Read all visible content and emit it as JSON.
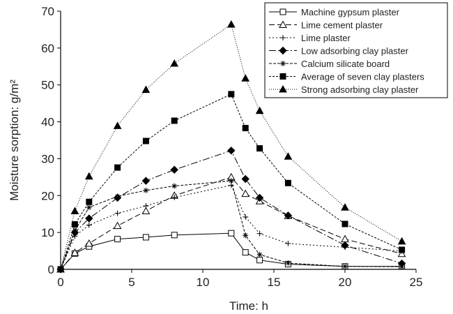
{
  "chart_data": {
    "type": "line",
    "title": "",
    "xlabel": "Time: h",
    "ylabel": "Moisture sorption: g/m²",
    "xlim": [
      0,
      25
    ],
    "ylim": [
      0,
      70
    ],
    "xticks": [
      0,
      5,
      10,
      15,
      20,
      25
    ],
    "yticks": [
      0,
      10,
      20,
      30,
      40,
      50,
      60,
      70
    ],
    "x": [
      0,
      1,
      2,
      4,
      6,
      8,
      12,
      13,
      14,
      16,
      20,
      24
    ],
    "grid": false,
    "legend_position": "top-right",
    "series": [
      {
        "name": "Machine gypsum plaster",
        "marker": "square-open",
        "dash": "",
        "color": "#000000",
        "values": [
          0,
          4.3,
          6.2,
          8.2,
          8.7,
          9.3,
          9.8,
          4.6,
          2.5,
          1.4,
          0.8,
          0.8
        ]
      },
      {
        "name": "Lime cement plaster",
        "marker": "triangle-open",
        "dash": "8,4",
        "color": "#000000",
        "values": [
          0,
          4.5,
          7.0,
          11.8,
          15.8,
          20.0,
          25.0,
          20.5,
          18.5,
          14.5,
          8.2,
          4.2
        ]
      },
      {
        "name": "Lime plaster",
        "marker": "plus",
        "dash": "2,3",
        "color": "#000000",
        "values": [
          0,
          9.0,
          12.0,
          15.2,
          17.2,
          19.5,
          22.8,
          14.2,
          9.7,
          7.0,
          6.0,
          5.0
        ]
      },
      {
        "name": "Low adsorbing clay plaster",
        "marker": "diamond-filled",
        "dash": "10,3,2,3",
        "color": "#000000",
        "values": [
          0,
          10.0,
          13.8,
          19.4,
          24.0,
          27.0,
          32.2,
          24.5,
          19.4,
          14.6,
          6.5,
          1.6
        ]
      },
      {
        "name": "Calcium silicate board",
        "marker": "asterisk",
        "dash": "4,2",
        "color": "#000000",
        "values": [
          0,
          10.5,
          16.8,
          19.8,
          21.4,
          22.6,
          24.0,
          9.2,
          4.0,
          1.7,
          0.8,
          0.7
        ]
      },
      {
        "name": "Average of seven clay plasters",
        "marker": "square-filled",
        "dash": "3,2",
        "color": "#000000",
        "values": [
          0,
          12.2,
          18.3,
          27.6,
          34.8,
          40.3,
          47.5,
          38.3,
          32.8,
          23.4,
          12.3,
          5.3
        ]
      },
      {
        "name": "Strong adsorbing clay plaster",
        "marker": "triangle-filled",
        "dash": "1,2",
        "color": "#000000",
        "values": [
          0,
          15.8,
          25.2,
          38.9,
          48.7,
          55.8,
          66.4,
          51.8,
          43.0,
          30.6,
          16.8,
          7.6
        ]
      }
    ]
  }
}
